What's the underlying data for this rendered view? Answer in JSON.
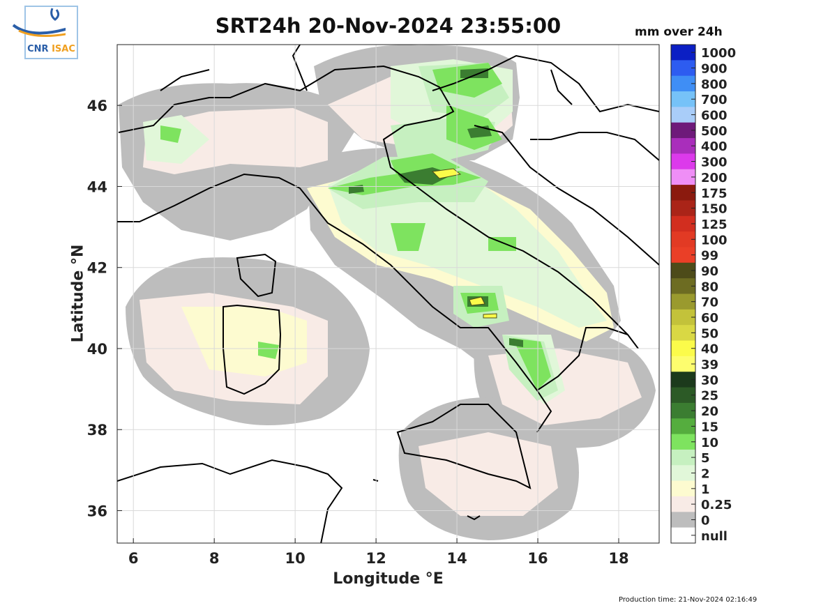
{
  "title": "SRT24h 20-Nov-2024 23:55:00",
  "colorbar_title": "mm over 24h",
  "xlabel": "Longitude °E",
  "ylabel": "Latitude °N",
  "production_time": "Production time: 21-Nov-2024 02:16:49",
  "logo": {
    "cnr": "CNR",
    "isac": "ISAC"
  },
  "x_ticks": [
    6,
    8,
    10,
    12,
    14,
    16,
    18
  ],
  "y_ticks": [
    36,
    38,
    40,
    42,
    44,
    46
  ],
  "x_range": [
    5.6,
    19.0
  ],
  "y_range": [
    35.2,
    47.5
  ],
  "legend": [
    {
      "label": "1000",
      "color": "#0b1fc4"
    },
    {
      "label": "900",
      "color": "#2d5cf0"
    },
    {
      "label": "800",
      "color": "#3f8ef5"
    },
    {
      "label": "700",
      "color": "#76c2f8"
    },
    {
      "label": "600",
      "color": "#a9cdf9"
    },
    {
      "label": "500",
      "color": "#6e1a7a"
    },
    {
      "label": "400",
      "color": "#a92ebb"
    },
    {
      "label": "300",
      "color": "#dc3aeb"
    },
    {
      "label": "200",
      "color": "#ef8ef6"
    },
    {
      "label": "175",
      "color": "#8b1a0e"
    },
    {
      "label": "150",
      "color": "#aa2418"
    },
    {
      "label": "125",
      "color": "#d22e1f"
    },
    {
      "label": "100",
      "color": "#e23a24"
    },
    {
      "label": "99",
      "color": "#ea3f27"
    },
    {
      "label": "90",
      "color": "#4d4b19"
    },
    {
      "label": "80",
      "color": "#6d6c22"
    },
    {
      "label": "70",
      "color": "#9a9a2e"
    },
    {
      "label": "60",
      "color": "#c3c23a"
    },
    {
      "label": "50",
      "color": "#d9d844"
    },
    {
      "label": "40",
      "color": "#fbfb4a"
    },
    {
      "label": "39",
      "color": "#fdfd6e"
    },
    {
      "label": "30",
      "color": "#1c3a1c"
    },
    {
      "label": "25",
      "color": "#2c5a26"
    },
    {
      "label": "20",
      "color": "#3b7d31"
    },
    {
      "label": "15",
      "color": "#55ad3e"
    },
    {
      "label": "10",
      "color": "#7ee35f"
    },
    {
      "label": "5",
      "color": "#c6f0c0"
    },
    {
      "label": "2",
      "color": "#e1f7d9"
    },
    {
      "label": "1",
      "color": "#fdfbd0"
    },
    {
      "label": "0.25",
      "color": "#f8ebe6"
    },
    {
      "label": "0",
      "color": "#bdbdbd"
    },
    {
      "label": "null",
      "color": "#ffffff"
    }
  ]
}
